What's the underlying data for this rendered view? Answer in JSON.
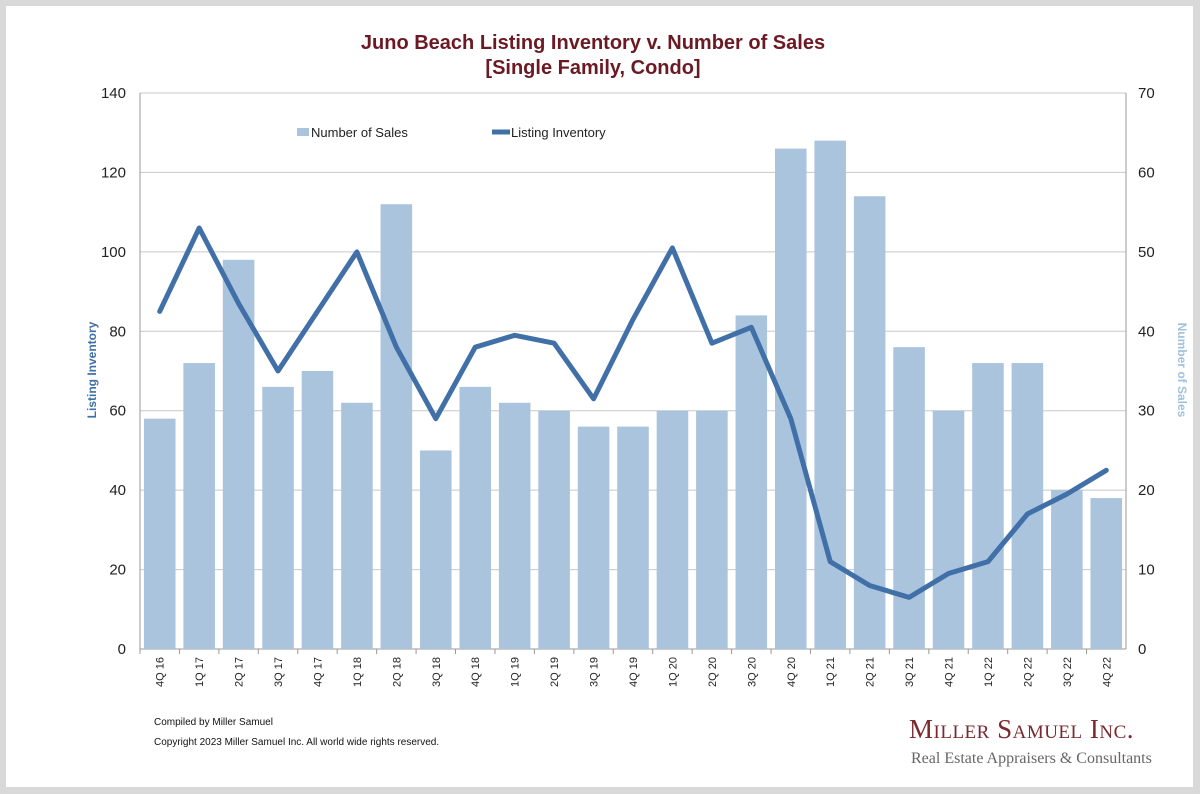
{
  "chart_data": {
    "type": "bar+line",
    "title": [
      "Juno Beach Listing Inventory v. Number of Sales",
      "[Single Family, Condo]"
    ],
    "categories": [
      "4Q 16",
      "1Q 17",
      "2Q 17",
      "3Q 17",
      "4Q 17",
      "1Q 18",
      "2Q 18",
      "3Q 18",
      "4Q 18",
      "1Q 19",
      "2Q 19",
      "3Q 19",
      "4Q 19",
      "1Q 20",
      "2Q 20",
      "3Q 20",
      "4Q 20",
      "1Q 21",
      "2Q 21",
      "3Q 21",
      "4Q 21",
      "1Q 22",
      "2Q 22",
      "3Q 22",
      "4Q 22"
    ],
    "series": [
      {
        "name": "Number of Sales",
        "type": "bar",
        "axis": "right",
        "color": "#a9c4dc",
        "values": [
          29,
          36,
          49,
          33,
          35,
          31,
          56,
          25,
          33,
          31,
          30,
          28,
          28,
          30,
          30,
          42,
          63,
          64,
          57,
          38,
          30,
          36,
          36,
          20,
          19
        ]
      },
      {
        "name": "Listing Inventory",
        "type": "line",
        "axis": "left",
        "color": "#4170a8",
        "values": [
          85,
          106,
          87,
          70,
          85,
          100,
          76,
          58,
          76,
          79,
          77,
          63,
          83,
          101,
          77,
          81,
          58,
          22,
          16,
          13,
          19,
          22,
          34,
          39,
          45
        ]
      }
    ],
    "ylabel_left": "Listing Inventory",
    "ylabel_right": "Number of Sales",
    "ylim_left": [
      0,
      140
    ],
    "ylim_right": [
      0,
      70
    ],
    "yticks_left": [
      0,
      20,
      40,
      60,
      80,
      100,
      120,
      140
    ],
    "yticks_right": [
      0,
      10,
      20,
      30,
      40,
      50,
      60,
      70
    ],
    "grid": true,
    "legend_position": "top-left"
  },
  "footnotes": {
    "compiled": "Compiled by Miller Samuel",
    "copyright": "Copyright 2023 Miller Samuel Inc.  All world wide rights reserved."
  },
  "brand": {
    "name": "Miller Samuel Inc.",
    "tagline": "Real Estate Appraisers & Consultants"
  }
}
